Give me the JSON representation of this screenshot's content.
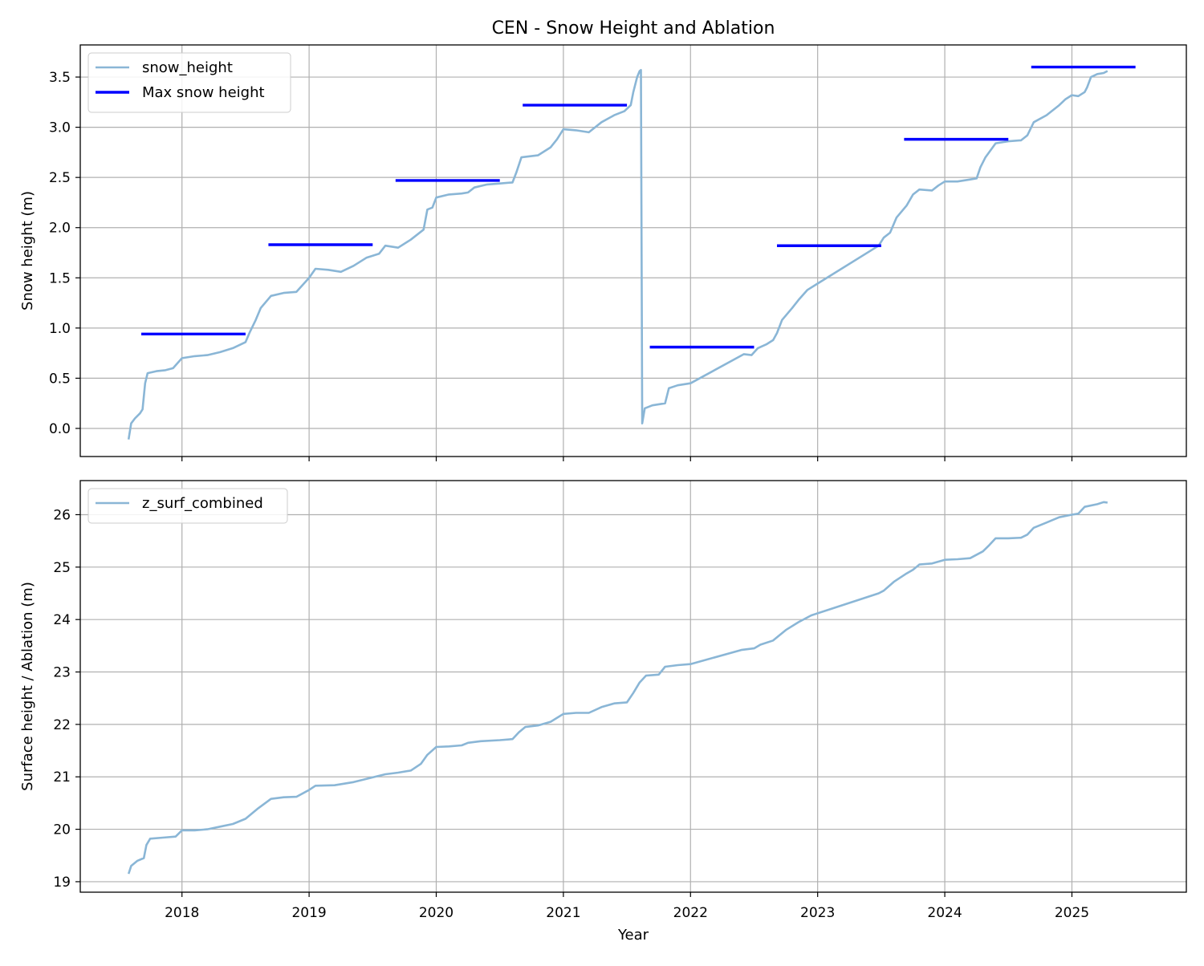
{
  "chart_data": {
    "title": "CEN - Snow Height and Ablation",
    "xlabel": "Year",
    "xlim": [
      2017.2,
      2025.9
    ],
    "xticks": [
      "2018",
      "2019",
      "2020",
      "2021",
      "2022",
      "2023",
      "2024",
      "2025"
    ],
    "grid": true,
    "panels": [
      {
        "type": "line",
        "ylabel": "Snow height (m)",
        "ylim": [
          -0.28,
          3.82
        ],
        "yticks": [
          "0.0",
          "0.5",
          "1.0",
          "1.5",
          "2.0",
          "2.5",
          "3.0",
          "3.5"
        ],
        "legend": {
          "position": "top-left",
          "entries": [
            "snow_height",
            "Max snow height"
          ]
        },
        "series": [
          {
            "name": "snow_height",
            "type": "line",
            "color": "#8ab6d6",
            "points": [
              [
                2017.58,
                -0.11
              ],
              [
                2017.6,
                0.05
              ],
              [
                2017.63,
                0.1
              ],
              [
                2017.67,
                0.15
              ],
              [
                2017.69,
                0.19
              ],
              [
                2017.71,
                0.45
              ],
              [
                2017.73,
                0.55
              ],
              [
                2017.8,
                0.57
              ],
              [
                2017.87,
                0.58
              ],
              [
                2017.93,
                0.6
              ],
              [
                2018.0,
                0.7
              ],
              [
                2018.1,
                0.72
              ],
              [
                2018.2,
                0.73
              ],
              [
                2018.3,
                0.76
              ],
              [
                2018.4,
                0.8
              ],
              [
                2018.5,
                0.86
              ],
              [
                2018.53,
                0.95
              ],
              [
                2018.58,
                1.08
              ],
              [
                2018.62,
                1.2
              ],
              [
                2018.7,
                1.32
              ],
              [
                2018.8,
                1.35
              ],
              [
                2018.9,
                1.36
              ],
              [
                2019.0,
                1.5
              ],
              [
                2019.05,
                1.59
              ],
              [
                2019.15,
                1.58
              ],
              [
                2019.25,
                1.56
              ],
              [
                2019.35,
                1.62
              ],
              [
                2019.45,
                1.7
              ],
              [
                2019.55,
                1.74
              ],
              [
                2019.6,
                1.82
              ],
              [
                2019.7,
                1.8
              ],
              [
                2019.8,
                1.88
              ],
              [
                2019.9,
                1.98
              ],
              [
                2019.93,
                2.18
              ],
              [
                2019.97,
                2.2
              ],
              [
                2020.0,
                2.3
              ],
              [
                2020.1,
                2.33
              ],
              [
                2020.2,
                2.34
              ],
              [
                2020.25,
                2.35
              ],
              [
                2020.3,
                2.4
              ],
              [
                2020.4,
                2.43
              ],
              [
                2020.5,
                2.44
              ],
              [
                2020.6,
                2.45
              ],
              [
                2020.63,
                2.55
              ],
              [
                2020.67,
                2.7
              ],
              [
                2020.8,
                2.72
              ],
              [
                2020.9,
                2.8
              ],
              [
                2020.95,
                2.88
              ],
              [
                2021.0,
                2.98
              ],
              [
                2021.1,
                2.97
              ],
              [
                2021.2,
                2.95
              ],
              [
                2021.3,
                3.05
              ],
              [
                2021.4,
                3.12
              ],
              [
                2021.48,
                3.16
              ],
              [
                2021.53,
                3.22
              ],
              [
                2021.55,
                3.35
              ],
              [
                2021.58,
                3.5
              ],
              [
                2021.6,
                3.56
              ],
              [
                2021.61,
                3.57
              ],
              [
                2021.62,
                0.05
              ],
              [
                2021.64,
                0.2
              ],
              [
                2021.7,
                0.23
              ],
              [
                2021.8,
                0.25
              ],
              [
                2021.83,
                0.4
              ],
              [
                2021.9,
                0.43
              ],
              [
                2022.0,
                0.45
              ],
              [
                2022.42,
                0.74
              ],
              [
                2022.48,
                0.73
              ],
              [
                2022.53,
                0.8
              ],
              [
                2022.6,
                0.84
              ],
              [
                2022.65,
                0.88
              ],
              [
                2022.68,
                0.95
              ],
              [
                2022.72,
                1.08
              ],
              [
                2022.8,
                1.2
              ],
              [
                2022.85,
                1.28
              ],
              [
                2022.92,
                1.38
              ],
              [
                2023.48,
                1.82
              ],
              [
                2023.52,
                1.9
              ],
              [
                2023.57,
                1.95
              ],
              [
                2023.62,
                2.1
              ],
              [
                2023.7,
                2.22
              ],
              [
                2023.75,
                2.33
              ],
              [
                2023.8,
                2.38
              ],
              [
                2023.9,
                2.37
              ],
              [
                2023.95,
                2.42
              ],
              [
                2024.0,
                2.46
              ],
              [
                2024.1,
                2.46
              ],
              [
                2024.2,
                2.48
              ],
              [
                2024.25,
                2.49
              ],
              [
                2024.28,
                2.6
              ],
              [
                2024.32,
                2.7
              ],
              [
                2024.4,
                2.84
              ],
              [
                2024.5,
                2.86
              ],
              [
                2024.6,
                2.87
              ],
              [
                2024.65,
                2.92
              ],
              [
                2024.7,
                3.05
              ],
              [
                2024.8,
                3.12
              ],
              [
                2024.9,
                3.22
              ],
              [
                2024.95,
                3.28
              ],
              [
                2025.0,
                3.32
              ],
              [
                2025.05,
                3.31
              ],
              [
                2025.1,
                3.35
              ],
              [
                2025.12,
                3.4
              ],
              [
                2025.15,
                3.5
              ],
              [
                2025.2,
                3.53
              ],
              [
                2025.25,
                3.54
              ],
              [
                2025.28,
                3.56
              ]
            ]
          },
          {
            "name": "Max snow height",
            "type": "step-segments",
            "color": "#0000ff",
            "segments": [
              {
                "x": [
                  2017.68,
                  2018.5
                ],
                "y": 0.94
              },
              {
                "x": [
                  2018.68,
                  2019.5
                ],
                "y": 1.83
              },
              {
                "x": [
                  2019.68,
                  2020.5
                ],
                "y": 2.47
              },
              {
                "x": [
                  2020.68,
                  2021.5
                ],
                "y": 3.22
              },
              {
                "x": [
                  2021.68,
                  2022.5
                ],
                "y": 0.81
              },
              {
                "x": [
                  2022.68,
                  2023.5
                ],
                "y": 1.82
              },
              {
                "x": [
                  2023.68,
                  2024.5
                ],
                "y": 2.88
              },
              {
                "x": [
                  2024.68,
                  2025.5
                ],
                "y": 3.6
              }
            ]
          }
        ]
      },
      {
        "type": "line",
        "ylabel": "Surface height / Ablation (m)",
        "ylim": [
          18.8,
          26.65
        ],
        "yticks": [
          "19",
          "20",
          "21",
          "22",
          "23",
          "24",
          "25",
          "26"
        ],
        "legend": {
          "position": "top-left",
          "entries": [
            "z_surf_combined"
          ]
        },
        "series": [
          {
            "name": "z_surf_combined",
            "type": "line",
            "color": "#8ab6d6",
            "points": [
              [
                2017.58,
                19.15
              ],
              [
                2017.6,
                19.3
              ],
              [
                2017.65,
                19.4
              ],
              [
                2017.7,
                19.45
              ],
              [
                2017.72,
                19.7
              ],
              [
                2017.75,
                19.82
              ],
              [
                2017.85,
                19.84
              ],
              [
                2017.95,
                19.86
              ],
              [
                2018.0,
                19.98
              ],
              [
                2018.1,
                19.98
              ],
              [
                2018.2,
                20.0
              ],
              [
                2018.3,
                20.05
              ],
              [
                2018.4,
                20.1
              ],
              [
                2018.5,
                20.2
              ],
              [
                2018.6,
                20.4
              ],
              [
                2018.7,
                20.58
              ],
              [
                2018.8,
                20.61
              ],
              [
                2018.9,
                20.62
              ],
              [
                2019.0,
                20.75
              ],
              [
                2019.05,
                20.83
              ],
              [
                2019.2,
                20.84
              ],
              [
                2019.35,
                20.9
              ],
              [
                2019.5,
                20.99
              ],
              [
                2019.6,
                21.05
              ],
              [
                2019.7,
                21.08
              ],
              [
                2019.8,
                21.12
              ],
              [
                2019.88,
                21.25
              ],
              [
                2019.93,
                21.42
              ],
              [
                2020.0,
                21.57
              ],
              [
                2020.1,
                21.58
              ],
              [
                2020.2,
                21.6
              ],
              [
                2020.25,
                21.65
              ],
              [
                2020.35,
                21.68
              ],
              [
                2020.5,
                21.7
              ],
              [
                2020.6,
                21.72
              ],
              [
                2020.65,
                21.85
              ],
              [
                2020.7,
                21.95
              ],
              [
                2020.8,
                21.98
              ],
              [
                2020.9,
                22.05
              ],
              [
                2021.0,
                22.2
              ],
              [
                2021.1,
                22.22
              ],
              [
                2021.2,
                22.22
              ],
              [
                2021.3,
                22.33
              ],
              [
                2021.4,
                22.4
              ],
              [
                2021.5,
                22.42
              ],
              [
                2021.55,
                22.6
              ],
              [
                2021.6,
                22.8
              ],
              [
                2021.65,
                22.93
              ],
              [
                2021.75,
                22.95
              ],
              [
                2021.8,
                23.1
              ],
              [
                2021.9,
                23.13
              ],
              [
                2022.0,
                23.15
              ],
              [
                2022.4,
                23.42
              ],
              [
                2022.5,
                23.45
              ],
              [
                2022.55,
                23.52
              ],
              [
                2022.65,
                23.6
              ],
              [
                2022.7,
                23.7
              ],
              [
                2022.75,
                23.8
              ],
              [
                2022.85,
                23.95
              ],
              [
                2022.95,
                24.08
              ],
              [
                2023.48,
                24.5
              ],
              [
                2023.52,
                24.55
              ],
              [
                2023.6,
                24.72
              ],
              [
                2023.7,
                24.88
              ],
              [
                2023.75,
                24.95
              ],
              [
                2023.8,
                25.05
              ],
              [
                2023.9,
                25.07
              ],
              [
                2024.0,
                25.14
              ],
              [
                2024.1,
                25.15
              ],
              [
                2024.2,
                25.17
              ],
              [
                2024.3,
                25.3
              ],
              [
                2024.35,
                25.42
              ],
              [
                2024.4,
                25.55
              ],
              [
                2024.5,
                25.55
              ],
              [
                2024.6,
                25.56
              ],
              [
                2024.65,
                25.62
              ],
              [
                2024.7,
                25.75
              ],
              [
                2024.8,
                25.85
              ],
              [
                2024.9,
                25.95
              ],
              [
                2025.0,
                26.0
              ],
              [
                2025.05,
                26.02
              ],
              [
                2025.1,
                26.15
              ],
              [
                2025.2,
                26.2
              ],
              [
                2025.25,
                26.24
              ],
              [
                2025.28,
                26.23
              ]
            ]
          }
        ]
      }
    ]
  }
}
